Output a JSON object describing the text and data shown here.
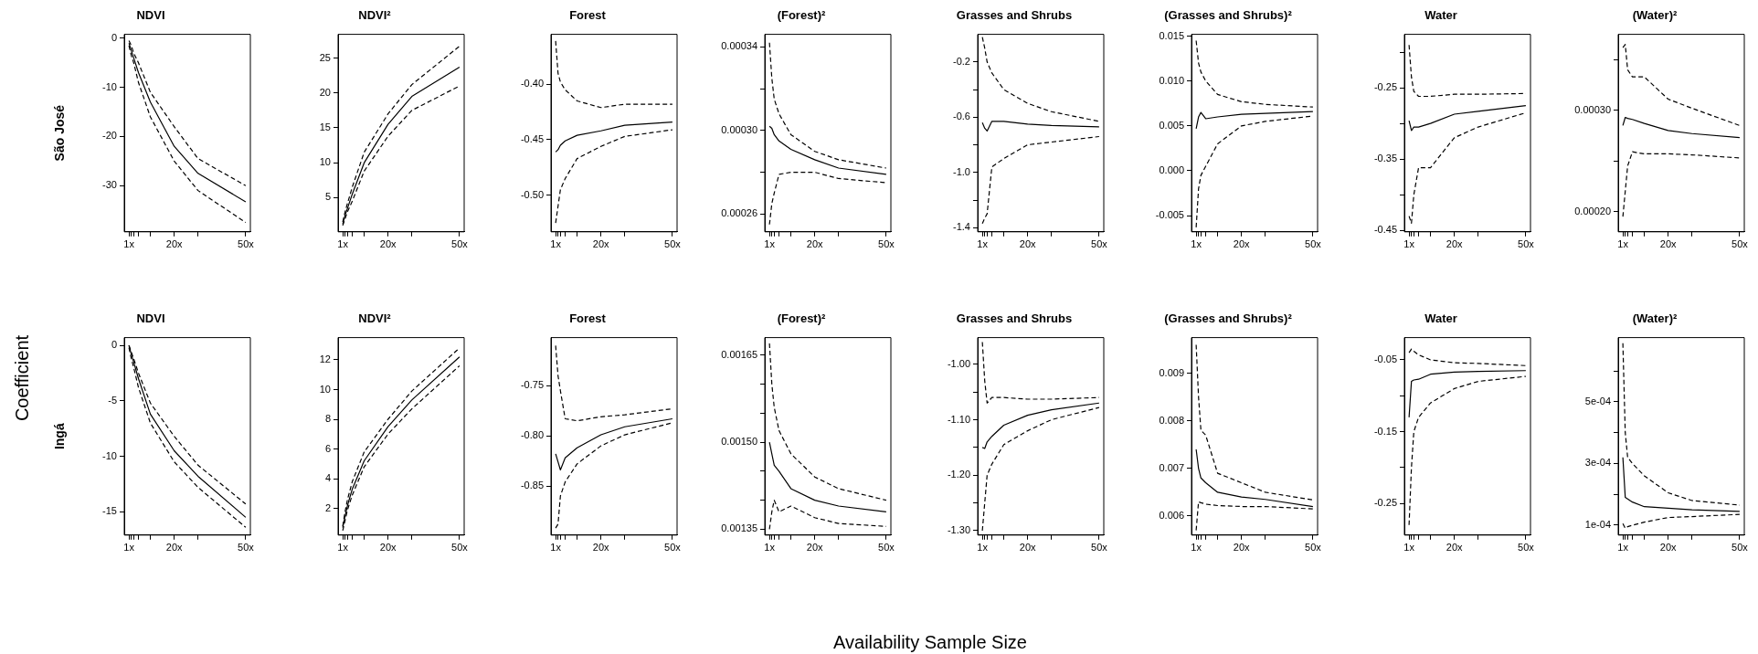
{
  "chart_data": [
    {
      "type": "line",
      "title": "NDVI",
      "ylabel": "São José",
      "x": [
        1,
        2,
        3,
        5,
        10,
        20,
        30,
        50
      ],
      "xlim": [
        -0.96,
        51.96
      ],
      "xticks": [
        {
          "value": 1,
          "label": "1x"
        },
        {
          "value": 2,
          "label": null
        },
        {
          "value": 3,
          "label": null
        },
        {
          "value": 5,
          "label": null
        },
        {
          "value": 10,
          "label": null
        },
        {
          "value": 20,
          "label": "20x"
        },
        {
          "value": 30,
          "label": null
        },
        {
          "value": 50,
          "label": "50x"
        }
      ],
      "ylim": [
        -39.4,
        0.8
      ],
      "yticks": [
        0,
        -10,
        -20,
        -30
      ],
      "series": [
        {
          "color": "#000000",
          "line_style": "solid",
          "values": [
            -1,
            -2.5,
            -4,
            -7,
            -13,
            -22,
            -27.5,
            -33.3
          ]
        },
        {
          "color": "#000000",
          "line_style": "dashed",
          "values": [
            -0.5,
            -1.5,
            -3,
            -5,
            -11,
            -18,
            -24.5,
            -30
          ]
        },
        {
          "color": "#000000",
          "line_style": "dashed",
          "values": [
            -1.5,
            -3.5,
            -5,
            -9,
            -16,
            -25,
            -31,
            -37.5
          ]
        }
      ]
    },
    {
      "type": "line",
      "title": "NDVI²",
      "x": [
        1,
        2,
        3,
        5,
        10,
        20,
        30,
        50
      ],
      "xlim": [
        -0.96,
        51.96
      ],
      "xticks": [
        {
          "value": 1,
          "label": "1x"
        },
        {
          "value": 2,
          "label": null
        },
        {
          "value": 3,
          "label": null
        },
        {
          "value": 5,
          "label": null
        },
        {
          "value": 10,
          "label": null
        },
        {
          "value": 20,
          "label": "20x"
        },
        {
          "value": 30,
          "label": null
        },
        {
          "value": 50,
          "label": "50x"
        }
      ],
      "ylim": [
        0.1,
        28.4
      ],
      "yticks": [
        5,
        10,
        15,
        20,
        25
      ],
      "series": [
        {
          "color": "#000000",
          "line_style": "solid",
          "values": [
            1.2,
            2.5,
            3.5,
            5.5,
            10,
            15.5,
            19.5,
            23.7
          ]
        },
        {
          "color": "#000000",
          "line_style": "dashed",
          "values": [
            1.5,
            3,
            4.2,
            6.5,
            11.5,
            17,
            21.2,
            26.7
          ]
        },
        {
          "color": "#000000",
          "line_style": "dashed",
          "values": [
            1,
            2,
            3,
            4.5,
            8.8,
            13.8,
            17.5,
            21
          ]
        }
      ]
    },
    {
      "type": "line",
      "title": "Forest",
      "x": [
        1,
        2,
        3,
        5,
        10,
        20,
        30,
        50
      ],
      "xlim": [
        -0.96,
        51.96
      ],
      "xticks": [
        {
          "value": 1,
          "label": "1x"
        },
        {
          "value": 2,
          "label": null
        },
        {
          "value": 3,
          "label": null
        },
        {
          "value": 5,
          "label": null
        },
        {
          "value": 10,
          "label": null
        },
        {
          "value": 20,
          "label": "20x"
        },
        {
          "value": 30,
          "label": null
        },
        {
          "value": 50,
          "label": "50x"
        }
      ],
      "ylim": [
        -0.533,
        -0.355
      ],
      "yticks": [
        {
          "value": -0.4,
          "label": "-0.40"
        },
        -0.45,
        {
          "value": -0.5,
          "label": "-0.50"
        }
      ],
      "series": [
        {
          "color": "#000000",
          "line_style": "solid",
          "values": [
            -0.461,
            -0.459,
            -0.455,
            -0.451,
            -0.446,
            -0.442,
            -0.437,
            -0.434
          ]
        },
        {
          "color": "#000000",
          "line_style": "dashed",
          "values": [
            -0.361,
            -0.39,
            -0.398,
            -0.405,
            -0.415,
            -0.421,
            -0.418,
            -0.418
          ]
        },
        {
          "color": "#000000",
          "line_style": "dashed",
          "values": [
            -0.525,
            -0.51,
            -0.495,
            -0.485,
            -0.467,
            -0.456,
            -0.447,
            -0.441
          ]
        }
      ]
    },
    {
      "type": "line",
      "title": "(Forest)²",
      "x": [
        1,
        2,
        3,
        5,
        10,
        20,
        30,
        50
      ],
      "xlim": [
        -0.96,
        51.96
      ],
      "xticks": [
        {
          "value": 1,
          "label": "1x"
        },
        {
          "value": 2,
          "label": null
        },
        {
          "value": 3,
          "label": null
        },
        {
          "value": 5,
          "label": null
        },
        {
          "value": 10,
          "label": null
        },
        {
          "value": 20,
          "label": "20x"
        },
        {
          "value": 30,
          "label": null
        },
        {
          "value": 50,
          "label": "50x"
        }
      ],
      "ylim": [
        0.0002515,
        0.000346
      ],
      "yticks": [
        0.00026,
        {
          "value": 0.00028,
          "label": null
        },
        {
          "value": 0.0003,
          "label": "0.00030"
        },
        {
          "value": 0.00032,
          "label": null
        },
        0.00034
      ],
      "series": [
        {
          "color": "#000000",
          "line_style": "solid",
          "values": [
            0.000302,
            0.000301,
            0.000298,
            0.000295,
            0.000291,
            0.000286,
            0.000282,
            0.000279
          ]
        },
        {
          "color": "#000000",
          "line_style": "dashed",
          "values": [
            0.000342,
            0.000325,
            0.000315,
            0.000308,
            0.000298,
            0.00029,
            0.000286,
            0.000282
          ]
        },
        {
          "color": "#000000",
          "line_style": "dashed",
          "values": [
            0.000255,
            0.000265,
            0.00027,
            0.000279,
            0.00028,
            0.00028,
            0.000277,
            0.000275
          ]
        }
      ]
    },
    {
      "type": "line",
      "title": "Grasses and Shrubs",
      "x": [
        1,
        2,
        3,
        5,
        10,
        20,
        30,
        50
      ],
      "xlim": [
        -0.96,
        51.96
      ],
      "xticks": [
        {
          "value": 1,
          "label": "1x"
        },
        {
          "value": 2,
          "label": null
        },
        {
          "value": 3,
          "label": null
        },
        {
          "value": 5,
          "label": null
        },
        {
          "value": 10,
          "label": null
        },
        {
          "value": 20,
          "label": "20x"
        },
        {
          "value": 30,
          "label": null
        },
        {
          "value": 50,
          "label": "50x"
        }
      ],
      "ylim": [
        -1.43,
        0.0
      ],
      "yticks": [
        -0.2,
        {
          "value": -0.4,
          "label": null
        },
        -0.6,
        {
          "value": -0.8,
          "label": null
        },
        {
          "value": -1,
          "label": "-1.0"
        },
        {
          "value": -1.2,
          "label": null
        },
        -1.4
      ],
      "series": [
        {
          "color": "#000000",
          "line_style": "solid",
          "values": [
            -0.64,
            -0.68,
            -0.7,
            -0.63,
            -0.63,
            -0.65,
            -0.66,
            -0.67
          ]
        },
        {
          "color": "#000000",
          "line_style": "dashed",
          "values": [
            -0.02,
            -0.1,
            -0.2,
            -0.28,
            -0.4,
            -0.5,
            -0.56,
            -0.63
          ]
        },
        {
          "color": "#000000",
          "line_style": "dashed",
          "values": [
            -1.37,
            -1.33,
            -1.3,
            -0.96,
            -0.9,
            -0.8,
            -0.78,
            -0.74
          ]
        }
      ]
    },
    {
      "type": "line",
      "title": "(Grasses and Shrubs)²",
      "x": [
        1,
        2,
        3,
        5,
        10,
        20,
        30,
        50
      ],
      "xlim": [
        -0.96,
        51.96
      ],
      "xticks": [
        {
          "value": 1,
          "label": "1x"
        },
        {
          "value": 2,
          "label": null
        },
        {
          "value": 3,
          "label": null
        },
        {
          "value": 5,
          "label": null
        },
        {
          "value": 10,
          "label": null
        },
        {
          "value": 20,
          "label": "20x"
        },
        {
          "value": 30,
          "label": null
        },
        {
          "value": 50,
          "label": "50x"
        }
      ],
      "ylim": [
        -0.0068,
        0.0152
      ],
      "yticks": [
        -0.005,
        {
          "value": 0,
          "label": "0.000"
        },
        0.005,
        {
          "value": 0.01,
          "label": "0.010"
        },
        0.015
      ],
      "series": [
        {
          "color": "#000000",
          "line_style": "solid",
          "values": [
            0.0047,
            0.006,
            0.0065,
            0.0058,
            0.006,
            0.0063,
            0.0064,
            0.0066
          ]
        },
        {
          "color": "#000000",
          "line_style": "dashed",
          "values": [
            0.0145,
            0.012,
            0.011,
            0.01,
            0.0085,
            0.0077,
            0.0074,
            0.0071
          ]
        },
        {
          "color": "#000000",
          "line_style": "dashed",
          "values": [
            -0.0063,
            -0.002,
            -0.0005,
            0.0005,
            0.003,
            0.005,
            0.0055,
            0.0061
          ]
        }
      ]
    },
    {
      "type": "line",
      "title": "Water",
      "x": [
        1,
        2,
        3,
        5,
        10,
        20,
        30,
        50
      ],
      "xlim": [
        -0.96,
        51.96
      ],
      "xticks": [
        {
          "value": 1,
          "label": "1x"
        },
        {
          "value": 2,
          "label": null
        },
        {
          "value": 3,
          "label": null
        },
        {
          "value": 5,
          "label": null
        },
        {
          "value": 10,
          "label": null
        },
        {
          "value": 20,
          "label": "20x"
        },
        {
          "value": 30,
          "label": null
        },
        {
          "value": 50,
          "label": "50x"
        }
      ],
      "ylim": [
        -0.452,
        -0.175
      ],
      "yticks": [
        {
          "value": -0.2,
          "label": null
        },
        -0.25,
        {
          "value": -0.3,
          "label": null
        },
        -0.35,
        {
          "value": -0.4,
          "label": null
        },
        -0.45
      ],
      "series": [
        {
          "color": "#000000",
          "line_style": "solid",
          "values": [
            -0.296,
            -0.31,
            -0.305,
            -0.305,
            -0.3,
            -0.287,
            -0.283,
            -0.275
          ]
        },
        {
          "color": "#000000",
          "line_style": "dashed",
          "values": [
            -0.19,
            -0.235,
            -0.255,
            -0.262,
            -0.262,
            -0.259,
            -0.259,
            -0.258
          ]
        },
        {
          "color": "#000000",
          "line_style": "dashed",
          "values": [
            -0.43,
            -0.44,
            -0.4,
            -0.362,
            -0.362,
            -0.32,
            -0.305,
            -0.285
          ]
        }
      ]
    },
    {
      "type": "line",
      "title": "(Water)²",
      "x": [
        1,
        2,
        3,
        5,
        10,
        20,
        30,
        50
      ],
      "xlim": [
        -0.96,
        51.96
      ],
      "xticks": [
        {
          "value": 1,
          "label": "1x"
        },
        {
          "value": 2,
          "label": null
        },
        {
          "value": 3,
          "label": null
        },
        {
          "value": 5,
          "label": null
        },
        {
          "value": 10,
          "label": null
        },
        {
          "value": 20,
          "label": "20x"
        },
        {
          "value": 30,
          "label": null
        },
        {
          "value": 50,
          "label": "50x"
        }
      ],
      "ylim": [
        0.00018,
        0.000375
      ],
      "yticks": [
        {
          "value": 0.0002,
          "label": "0.00020"
        },
        {
          "value": 0.00025,
          "label": null
        },
        {
          "value": 0.0003,
          "label": "0.00030"
        },
        {
          "value": 0.00035,
          "label": null
        }
      ],
      "series": [
        {
          "color": "#000000",
          "line_style": "solid",
          "values": [
            0.000285,
            0.000293,
            0.000292,
            0.000291,
            0.000287,
            0.00028,
            0.000277,
            0.000273
          ]
        },
        {
          "color": "#000000",
          "line_style": "dashed",
          "values": [
            0.000362,
            0.000365,
            0.00034,
            0.000333,
            0.000333,
            0.000311,
            0.000302,
            0.000285
          ]
        },
        {
          "color": "#000000",
          "line_style": "dashed",
          "values": [
            0.000195,
            0.00022,
            0.000245,
            0.000259,
            0.000257,
            0.000257,
            0.000256,
            0.000253
          ]
        }
      ]
    },
    {
      "type": "line",
      "title": "NDVI",
      "ylabel": "Ingá",
      "x": [
        1,
        2,
        3,
        5,
        10,
        20,
        30,
        50
      ],
      "xlim": [
        -0.96,
        51.96
      ],
      "xticks": [
        {
          "value": 1,
          "label": "1x"
        },
        {
          "value": 2,
          "label": null
        },
        {
          "value": 3,
          "label": null
        },
        {
          "value": 5,
          "label": null
        },
        {
          "value": 10,
          "label": null
        },
        {
          "value": 20,
          "label": "20x"
        },
        {
          "value": 30,
          "label": null
        },
        {
          "value": 50,
          "label": "50x"
        }
      ],
      "ylim": [
        -17.1,
        0.7
      ],
      "yticks": [
        0,
        -5,
        -10,
        -15
      ],
      "series": [
        {
          "color": "#000000",
          "line_style": "solid",
          "values": [
            0,
            -0.8,
            -1.5,
            -3,
            -6.2,
            -9.5,
            -11.8,
            -15.5
          ]
        },
        {
          "color": "#000000",
          "line_style": "dashed",
          "values": [
            0,
            -0.6,
            -1.2,
            -2.5,
            -5.2,
            -8.2,
            -10.8,
            -14.3
          ]
        },
        {
          "color": "#000000",
          "line_style": "dashed",
          "values": [
            -0.2,
            -1.2,
            -2,
            -3.8,
            -7,
            -10.5,
            -12.8,
            -16.4
          ]
        }
      ]
    },
    {
      "type": "line",
      "title": "NDVI²",
      "x": [
        1,
        2,
        3,
        5,
        10,
        20,
        30,
        50
      ],
      "xlim": [
        -0.96,
        51.96
      ],
      "xticks": [
        {
          "value": 1,
          "label": "1x"
        },
        {
          "value": 2,
          "label": null
        },
        {
          "value": 3,
          "label": null
        },
        {
          "value": 5,
          "label": null
        },
        {
          "value": 10,
          "label": null
        },
        {
          "value": 20,
          "label": "20x"
        },
        {
          "value": 30,
          "label": null
        },
        {
          "value": 50,
          "label": "50x"
        }
      ],
      "ylim": [
        0.2,
        13.5
      ],
      "yticks": [
        2,
        4,
        6,
        8,
        10,
        12
      ],
      "series": [
        {
          "color": "#000000",
          "line_style": "solid",
          "values": [
            0.7,
            1.5,
            2.2,
            3.3,
            5.2,
            7.5,
            9.3,
            12.2
          ]
        },
        {
          "color": "#000000",
          "line_style": "dashed",
          "values": [
            0.8,
            1.8,
            2.6,
            3.8,
            5.8,
            8,
            9.9,
            12.8
          ]
        },
        {
          "color": "#000000",
          "line_style": "dashed",
          "values": [
            0.5,
            1.2,
            1.9,
            2.9,
            4.8,
            7,
            8.7,
            11.6
          ]
        }
      ]
    },
    {
      "type": "line",
      "title": "Forest",
      "x": [
        1,
        2,
        3,
        5,
        10,
        20,
        30,
        50
      ],
      "xlim": [
        -0.96,
        51.96
      ],
      "xticks": [
        {
          "value": 1,
          "label": "1x"
        },
        {
          "value": 2,
          "label": null
        },
        {
          "value": 3,
          "label": null
        },
        {
          "value": 5,
          "label": null
        },
        {
          "value": 10,
          "label": null
        },
        {
          "value": 20,
          "label": "20x"
        },
        {
          "value": 30,
          "label": null
        },
        {
          "value": 50,
          "label": "50x"
        }
      ],
      "ylim": [
        -0.899,
        -0.702
      ],
      "yticks": [
        -0.75,
        {
          "value": -0.8,
          "label": "-0.80"
        },
        -0.85
      ],
      "series": [
        {
          "color": "#000000",
          "line_style": "solid",
          "values": [
            -0.818,
            -0.826,
            -0.834,
            -0.822,
            -0.812,
            -0.799,
            -0.791,
            -0.783
          ]
        },
        {
          "color": "#000000",
          "line_style": "dashed",
          "values": [
            -0.71,
            -0.74,
            -0.755,
            -0.783,
            -0.785,
            -0.781,
            -0.779,
            -0.773
          ]
        },
        {
          "color": "#000000",
          "line_style": "dashed",
          "values": [
            -0.892,
            -0.888,
            -0.86,
            -0.846,
            -0.828,
            -0.81,
            -0.799,
            -0.787
          ]
        }
      ]
    },
    {
      "type": "line",
      "title": "(Forest)²",
      "x": [
        1,
        2,
        3,
        5,
        10,
        20,
        30,
        50
      ],
      "xlim": [
        -0.96,
        51.96
      ],
      "xticks": [
        {
          "value": 1,
          "label": "1x"
        },
        {
          "value": 2,
          "label": null
        },
        {
          "value": 3,
          "label": null
        },
        {
          "value": 5,
          "label": null
        },
        {
          "value": 10,
          "label": null
        },
        {
          "value": 20,
          "label": "20x"
        },
        {
          "value": 30,
          "label": null
        },
        {
          "value": 50,
          "label": "50x"
        }
      ],
      "ylim": [
        0.00134,
        0.00168
      ],
      "yticks": [
        0.00135,
        {
          "value": 0.0014,
          "label": null
        },
        {
          "value": 0.00145,
          "label": null
        },
        {
          "value": 0.0015,
          "label": "0.00150"
        },
        {
          "value": 0.00155,
          "label": null
        },
        {
          "value": 0.0016,
          "label": null
        },
        0.00165
      ],
      "series": [
        {
          "color": "#000000",
          "line_style": "solid",
          "values": [
            0.0015,
            0.00148,
            0.00146,
            0.00145,
            0.00142,
            0.0014,
            0.00139,
            0.00138
          ]
        },
        {
          "color": "#000000",
          "line_style": "dashed",
          "values": [
            0.00167,
            0.0016,
            0.00156,
            0.00152,
            0.00148,
            0.00144,
            0.00142,
            0.0014
          ]
        },
        {
          "color": "#000000",
          "line_style": "dashed",
          "values": [
            0.00135,
            0.00138,
            0.0014,
            0.00138,
            0.00139,
            0.00137,
            0.00136,
            0.001355
          ]
        }
      ]
    },
    {
      "type": "line",
      "title": "Grasses and Shrubs",
      "x": [
        1,
        2,
        3,
        5,
        10,
        20,
        30,
        50
      ],
      "xlim": [
        -0.96,
        51.96
      ],
      "xticks": [
        {
          "value": 1,
          "label": "1x"
        },
        {
          "value": 2,
          "label": null
        },
        {
          "value": 3,
          "label": null
        },
        {
          "value": 5,
          "label": null
        },
        {
          "value": 10,
          "label": null
        },
        {
          "value": 20,
          "label": "20x"
        },
        {
          "value": 30,
          "label": null
        },
        {
          "value": 50,
          "label": "50x"
        }
      ],
      "ylim": [
        -1.308,
        -0.952
      ],
      "yticks": [
        {
          "value": -1,
          "label": "-1.00"
        },
        {
          "value": -1.05,
          "label": null
        },
        {
          "value": -1.1,
          "label": "-1.10"
        },
        {
          "value": -1.15,
          "label": null
        },
        {
          "value": -1.2,
          "label": "-1.20"
        },
        {
          "value": -1.25,
          "label": null
        },
        {
          "value": -1.3,
          "label": "-1.30"
        }
      ],
      "series": [
        {
          "color": "#000000",
          "line_style": "solid",
          "values": [
            -1.15,
            -1.152,
            -1.14,
            -1.13,
            -1.11,
            -1.092,
            -1.082,
            -1.07
          ]
        },
        {
          "color": "#000000",
          "line_style": "dashed",
          "values": [
            -0.96,
            -1.03,
            -1.07,
            -1.06,
            -1.06,
            -1.063,
            -1.063,
            -1.06
          ]
        },
        {
          "color": "#000000",
          "line_style": "dashed",
          "values": [
            -1.3,
            -1.25,
            -1.2,
            -1.18,
            -1.145,
            -1.12,
            -1.1,
            -1.078
          ]
        }
      ]
    },
    {
      "type": "line",
      "title": "(Grasses and Shrubs)²",
      "x": [
        1,
        2,
        3,
        5,
        10,
        20,
        30,
        50
      ],
      "xlim": [
        -0.96,
        51.96
      ],
      "xticks": [
        {
          "value": 1,
          "label": "1x"
        },
        {
          "value": 2,
          "label": null
        },
        {
          "value": 3,
          "label": null
        },
        {
          "value": 5,
          "label": null
        },
        {
          "value": 10,
          "label": null
        },
        {
          "value": 20,
          "label": "20x"
        },
        {
          "value": 30,
          "label": null
        },
        {
          "value": 50,
          "label": "50x"
        }
      ],
      "ylim": [
        0.0056,
        0.00975
      ],
      "yticks": [
        0.006,
        0.007,
        0.008,
        0.009
      ],
      "series": [
        {
          "color": "#000000",
          "line_style": "solid",
          "values": [
            0.0074,
            0.007,
            0.0068,
            0.0067,
            0.0065,
            0.0064,
            0.00635,
            0.0062
          ]
        },
        {
          "color": "#000000",
          "line_style": "dashed",
          "values": [
            0.0096,
            0.0085,
            0.0078,
            0.0077,
            0.0069,
            0.0067,
            0.0065,
            0.00634
          ]
        },
        {
          "color": "#000000",
          "line_style": "dashed",
          "values": [
            0.0057,
            0.0063,
            0.00628,
            0.00625,
            0.00622,
            0.0062,
            0.0062,
            0.00615
          ]
        }
      ]
    },
    {
      "type": "line",
      "title": "Water",
      "x": [
        1,
        2,
        3,
        5,
        10,
        20,
        30,
        50
      ],
      "xlim": [
        -0.96,
        51.96
      ],
      "xticks": [
        {
          "value": 1,
          "label": "1x"
        },
        {
          "value": 2,
          "label": null
        },
        {
          "value": 3,
          "label": null
        },
        {
          "value": 5,
          "label": null
        },
        {
          "value": 10,
          "label": null
        },
        {
          "value": 20,
          "label": "20x"
        },
        {
          "value": 30,
          "label": null
        },
        {
          "value": 50,
          "label": "50x"
        }
      ],
      "ylim": [
        -0.294,
        -0.019
      ],
      "yticks": [
        -0.05,
        {
          "value": -0.1,
          "label": null
        },
        -0.15,
        {
          "value": -0.2,
          "label": null
        },
        -0.25
      ],
      "series": [
        {
          "color": "#000000",
          "line_style": "solid",
          "values": [
            -0.13,
            -0.08,
            -0.078,
            -0.077,
            -0.07,
            -0.067,
            -0.066,
            -0.065
          ]
        },
        {
          "color": "#000000",
          "line_style": "dashed",
          "values": [
            -0.04,
            -0.035,
            -0.038,
            -0.043,
            -0.05,
            -0.054,
            -0.055,
            -0.058
          ]
        },
        {
          "color": "#000000",
          "line_style": "dashed",
          "values": [
            -0.28,
            -0.2,
            -0.15,
            -0.13,
            -0.11,
            -0.09,
            -0.08,
            -0.073
          ]
        }
      ]
    },
    {
      "type": "line",
      "title": "(Water)²",
      "x": [
        1,
        2,
        3,
        5,
        10,
        20,
        30,
        50
      ],
      "xlim": [
        -0.96,
        51.96
      ],
      "xticks": [
        {
          "value": 1,
          "label": "1x"
        },
        {
          "value": 2,
          "label": null
        },
        {
          "value": 3,
          "label": null
        },
        {
          "value": 5,
          "label": null
        },
        {
          "value": 10,
          "label": null
        },
        {
          "value": 20,
          "label": "20x"
        },
        {
          "value": 30,
          "label": null
        },
        {
          "value": 50,
          "label": "50x"
        }
      ],
      "ylim": [
        6.8e-05,
        0.000708
      ],
      "yticks": [
        {
          "value": 0.0001,
          "label": "1e-04"
        },
        {
          "value": 0.0002,
          "label": null
        },
        {
          "value": 0.0003,
          "label": "3e-04"
        },
        {
          "value": 0.0004,
          "label": null
        },
        {
          "value": 0.0005,
          "label": "5e-04"
        },
        {
          "value": 0.0006,
          "label": null
        }
      ],
      "series": [
        {
          "color": "#000000",
          "line_style": "solid",
          "values": [
            0.00032,
            0.00019,
            0.000185,
            0.000175,
            0.00016,
            0.000155,
            0.00015,
            0.000145
          ]
        },
        {
          "color": "#000000",
          "line_style": "dashed",
          "values": [
            0.00069,
            0.0004,
            0.00032,
            0.0003,
            0.00026,
            0.000205,
            0.00018,
            0.000165
          ]
        },
        {
          "color": "#000000",
          "line_style": "dashed",
          "values": [
            0.000105,
            9e-05,
            9.5e-05,
            0.0001,
            0.00011,
            0.000125,
            0.000128,
            0.000135
          ]
        }
      ]
    },
    {
      "type": "other",
      "xlabel": "Availability Sample Size",
      "ylabel": "Coefficient"
    }
  ]
}
